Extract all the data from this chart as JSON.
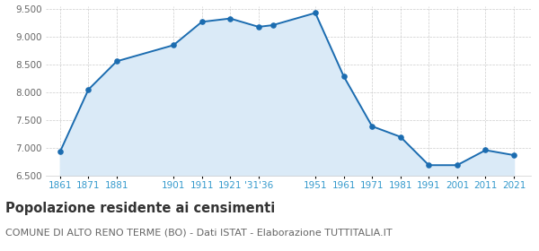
{
  "population": [
    6930,
    8050,
    8560,
    8850,
    9270,
    9330,
    9180,
    9210,
    9430,
    8290,
    7390,
    7200,
    6690,
    6690,
    6960,
    6870
  ],
  "x_tick_positions": [
    0,
    1,
    2,
    4,
    5,
    6,
    7,
    9,
    10,
    11,
    12,
    13,
    14,
    15,
    16
  ],
  "x_tick_labels": [
    "1861",
    "1871",
    "1881",
    "1901",
    "1911",
    "1921",
    "'31'36",
    "1951",
    "1961",
    "1971",
    "1981",
    "1991",
    "2001",
    "2011",
    "2021"
  ],
  "data_x_positions": [
    0,
    1,
    2,
    4,
    5,
    6,
    7,
    7.5,
    9,
    10,
    11,
    12,
    13,
    14,
    15,
    16
  ],
  "line_color": "#1b6cb0",
  "fill_color": "#daeaf7",
  "marker_color": "#1b6cb0",
  "bg_color": "#ffffff",
  "grid_color": "#cccccc",
  "ylim": [
    6500,
    9550
  ],
  "yticks": [
    6500,
    7000,
    7500,
    8000,
    8500,
    9000,
    9500
  ],
  "title": "Popolazione residente ai censimenti",
  "subtitle": "COMUNE DI ALTO RENO TERME (BO) - Dati ISTAT - Elaborazione TUTTITALIA.IT",
  "title_fontsize": 10.5,
  "subtitle_fontsize": 8,
  "title_color": "#333333",
  "subtitle_color": "#666666",
  "axis_label_color": "#3399cc",
  "axis_label_fontsize": 7.5,
  "ytick_label_color": "#666666",
  "ytick_label_fontsize": 7.5
}
